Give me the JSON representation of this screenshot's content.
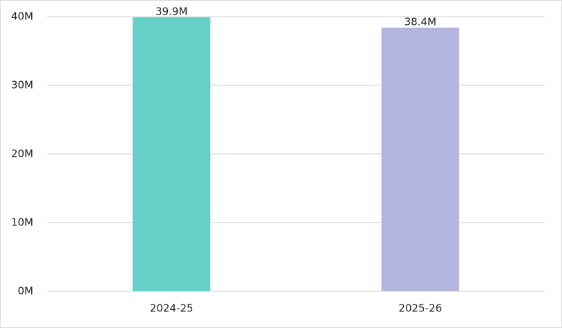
{
  "chart_data": {
    "type": "bar",
    "categories": [
      "2024-25",
      "2025-26"
    ],
    "values": [
      39900000,
      38400000
    ],
    "value_labels": [
      "39.9M",
      "38.4M"
    ],
    "colors": [
      "#66cfc8",
      "#b3b5e0"
    ],
    "ylim": [
      0,
      40000000
    ],
    "yticks": [
      {
        "value": 0,
        "label": "0M"
      },
      {
        "value": 10000000,
        "label": "10M"
      },
      {
        "value": 20000000,
        "label": "20M"
      },
      {
        "value": 30000000,
        "label": "30M"
      },
      {
        "value": 40000000,
        "label": "40M"
      }
    ],
    "grid": true
  }
}
